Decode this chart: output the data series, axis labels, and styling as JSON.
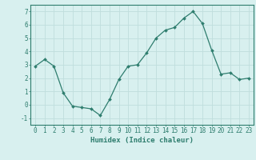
{
  "x": [
    0,
    1,
    2,
    3,
    4,
    5,
    6,
    7,
    8,
    9,
    10,
    11,
    12,
    13,
    14,
    15,
    16,
    17,
    18,
    19,
    20,
    21,
    22,
    23
  ],
  "y": [
    2.9,
    3.4,
    2.9,
    0.9,
    -0.1,
    -0.2,
    -0.3,
    -0.8,
    0.4,
    1.9,
    2.9,
    3.0,
    3.9,
    5.0,
    5.6,
    5.8,
    6.5,
    7.0,
    6.1,
    4.1,
    2.3,
    2.4,
    1.9,
    2.0
  ],
  "line_color": "#2e7d6e",
  "marker": "D",
  "marker_size": 2.0,
  "bg_color": "#d8f0ef",
  "grid_color": "#c0dedd",
  "xlabel": "Humidex (Indice chaleur)",
  "ylim": [
    -1.5,
    7.5
  ],
  "xlim": [
    -0.5,
    23.5
  ],
  "yticks": [
    -1,
    0,
    1,
    2,
    3,
    4,
    5,
    6,
    7
  ],
  "xticks": [
    0,
    1,
    2,
    3,
    4,
    5,
    6,
    7,
    8,
    9,
    10,
    11,
    12,
    13,
    14,
    15,
    16,
    17,
    18,
    19,
    20,
    21,
    22,
    23
  ],
  "tick_color": "#2e7d6e",
  "axis_color": "#2e7d6e",
  "label_fontsize": 5.5,
  "xlabel_fontsize": 6.5
}
